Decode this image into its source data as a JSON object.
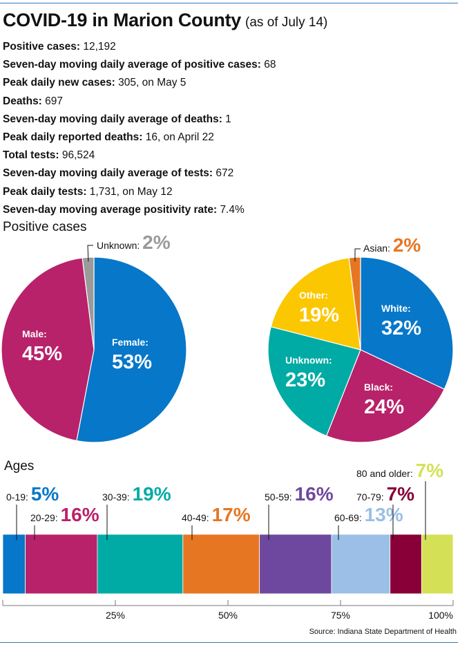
{
  "header": {
    "title": "COVID-19 in Marion County",
    "subtitle": "(as of July 14)"
  },
  "stats": [
    {
      "label": "Positive cases:",
      "value": "12,192"
    },
    {
      "label": "Seven-day moving daily average of positive cases:",
      "value": "68"
    },
    {
      "label": "Peak daily new cases:",
      "value": "305, on May 5"
    },
    {
      "label": "Deaths:",
      "value": "697"
    },
    {
      "label": "Seven-day moving daily average of deaths:",
      "value": "1"
    },
    {
      "label": "Peak daily reported deaths:",
      "value": "16, on April 22"
    },
    {
      "label": "Total tests:",
      "value": "96,524"
    },
    {
      "label": "Seven-day moving daily average of tests:",
      "value": "672"
    },
    {
      "label": "Peak daily tests:",
      "value": "1,731, on May 12"
    },
    {
      "label": "Seven-day moving average positivity rate:",
      "value": "7.4%"
    }
  ],
  "positive_cases_title": "Positive cases",
  "ages_title": "Ages",
  "source": "Source: Indiana State Department of Health",
  "chart_data": [
    {
      "type": "pie",
      "title": "Positive cases",
      "slices": [
        {
          "label": "Female:",
          "value": 53,
          "display": "53%",
          "color": "#0777c9"
        },
        {
          "label": "Male:",
          "value": 45,
          "display": "45%",
          "color": "#b8226a"
        },
        {
          "label": "Unknown:",
          "value": 2,
          "display": "2%",
          "color": "#9a9a9a"
        }
      ]
    },
    {
      "type": "pie",
      "slices": [
        {
          "label": "White:",
          "value": 32,
          "display": "32%",
          "color": "#0777c9"
        },
        {
          "label": "Black:",
          "value": 24,
          "display": "24%",
          "color": "#b8226a"
        },
        {
          "label": "Unknown:",
          "value": 23,
          "display": "23%",
          "color": "#00aba5"
        },
        {
          "label": "Other:",
          "value": 19,
          "display": "19%",
          "color": "#fbc700"
        },
        {
          "label": "Asian:",
          "value": 2,
          "display": "2%",
          "color": "#e77622"
        }
      ]
    },
    {
      "type": "bar",
      "title": "Ages",
      "orientation": "horizontal-stacked",
      "xlim": [
        0,
        100
      ],
      "ticks": [
        "25%",
        "50%",
        "75%",
        "100%"
      ],
      "tick_values": [
        25,
        50,
        75,
        100
      ],
      "segments": [
        {
          "label": "0-19:",
          "value": 5,
          "display": "5%",
          "color": "#0777c9"
        },
        {
          "label": "20-29:",
          "value": 16,
          "display": "16%",
          "color": "#b8226a"
        },
        {
          "label": "30-39:",
          "value": 19,
          "display": "19%",
          "color": "#00aba5"
        },
        {
          "label": "40-49:",
          "value": 17,
          "display": "17%",
          "color": "#e77622"
        },
        {
          "label": "50-59:",
          "value": 16,
          "display": "16%",
          "color": "#6e489e"
        },
        {
          "label": "60-69:",
          "value": 13,
          "display": "13%",
          "color": "#9bbfe6"
        },
        {
          "label": "70-79:",
          "value": 7,
          "display": "7%",
          "color": "#880037"
        },
        {
          "label": "80 and older:",
          "value": 7,
          "display": "7%",
          "color": "#d4e157"
        }
      ]
    }
  ]
}
